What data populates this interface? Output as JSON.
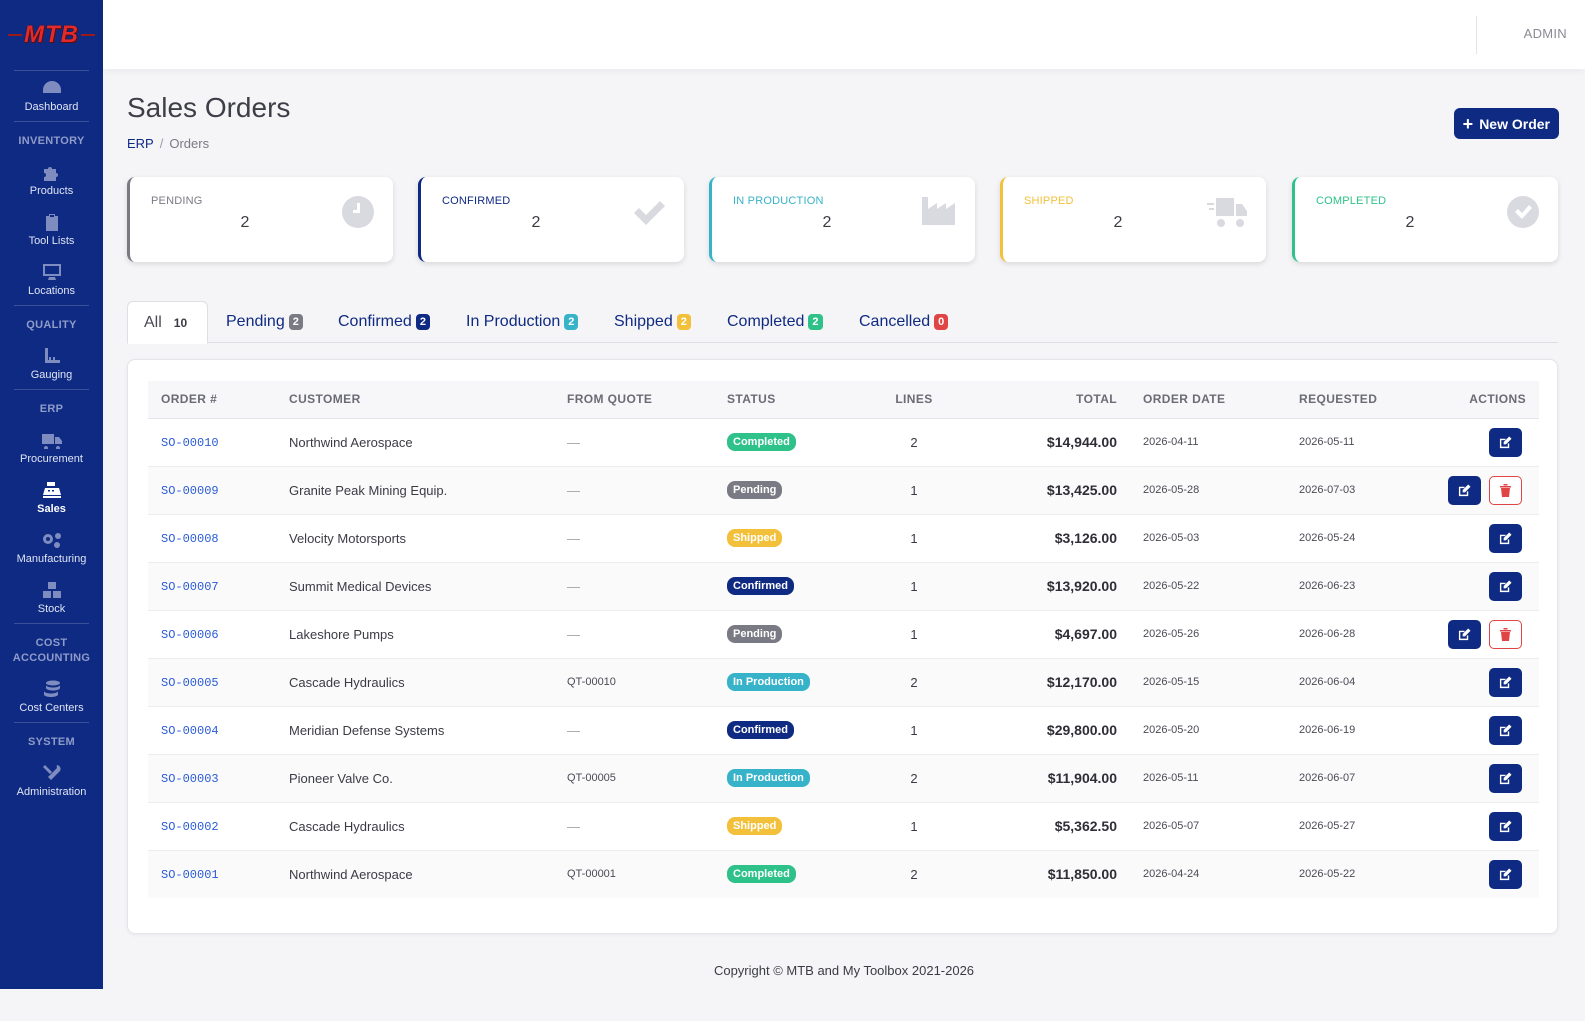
{
  "app": {
    "logo": "MTB",
    "user": "ADMIN"
  },
  "sidebar": {
    "dashboard": "Dashboard",
    "sections": [
      {
        "heading": "INVENTORY",
        "items": [
          {
            "label": "Products",
            "icon": "puzzle-icon"
          },
          {
            "label": "Tool Lists",
            "icon": "clipboard-icon"
          },
          {
            "label": "Locations",
            "icon": "monitor-icon"
          }
        ]
      },
      {
        "heading": "QUALITY",
        "items": [
          {
            "label": "Gauging",
            "icon": "ruler-icon"
          }
        ]
      },
      {
        "heading": "ERP",
        "items": [
          {
            "label": "Procurement",
            "icon": "truck-icon"
          },
          {
            "label": "Sales",
            "icon": "cash-register-icon",
            "active": true
          },
          {
            "label": "Manufacturing",
            "icon": "gears-icon"
          },
          {
            "label": "Stock",
            "icon": "boxes-icon"
          }
        ]
      },
      {
        "heading": "COST ACCOUNTING",
        "items": [
          {
            "label": "Cost Centers",
            "icon": "coins-icon"
          }
        ]
      },
      {
        "heading": "SYSTEM",
        "items": [
          {
            "label": "Administration",
            "icon": "tools-icon"
          }
        ]
      }
    ]
  },
  "header": {
    "title": "Sales Orders",
    "breadcrumb": {
      "root": "ERP",
      "current": "Orders"
    },
    "new_button": "New Order"
  },
  "cards": [
    {
      "title": "PENDING",
      "value": "2",
      "color": "#7a7a84",
      "icon": "clock-icon"
    },
    {
      "title": "CONFIRMED",
      "value": "2",
      "color": "#0f2a82",
      "icon": "check-icon"
    },
    {
      "title": "IN PRODUCTION",
      "value": "2",
      "color": "#36b3c9",
      "icon": "industry-icon"
    },
    {
      "title": "SHIPPED",
      "value": "2",
      "color": "#f2c03a",
      "icon": "truck-fast-icon"
    },
    {
      "title": "COMPLETED",
      "value": "2",
      "color": "#2ec28a",
      "icon": "check-circle-icon"
    }
  ],
  "tabs": [
    {
      "label": "All",
      "count": "10",
      "color": "transparent",
      "active": true
    },
    {
      "label": "Pending",
      "count": "2",
      "color": "#7a7a84"
    },
    {
      "label": "Confirmed",
      "count": "2",
      "color": "#0f2a82"
    },
    {
      "label": "In Production",
      "count": "2",
      "color": "#36b3c9"
    },
    {
      "label": "Shipped",
      "count": "2",
      "color": "#f2c03a"
    },
    {
      "label": "Completed",
      "count": "2",
      "color": "#2ec28a"
    },
    {
      "label": "Cancelled",
      "count": "0",
      "color": "#e04444"
    }
  ],
  "table": {
    "columns": [
      "ORDER #",
      "CUSTOMER",
      "FROM QUOTE",
      "STATUS",
      "LINES",
      "TOTAL",
      "ORDER DATE",
      "REQUESTED",
      "ACTIONS"
    ],
    "status_colors": {
      "Completed": "#2ec28a",
      "Pending": "#7a7a84",
      "Shipped": "#f2c03a",
      "Confirmed": "#0f2a82",
      "In Production": "#36b3c9"
    },
    "rows": [
      {
        "order": "SO-00010",
        "customer": "Northwind Aerospace",
        "quote": "—",
        "status": "Completed",
        "lines": "2",
        "total": "$14,944.00",
        "order_date": "2026-04-11",
        "requested": "2026-05-11",
        "deletable": false
      },
      {
        "order": "SO-00009",
        "customer": "Granite Peak Mining Equip.",
        "quote": "—",
        "status": "Pending",
        "lines": "1",
        "total": "$13,425.00",
        "order_date": "2026-05-28",
        "requested": "2026-07-03",
        "deletable": true
      },
      {
        "order": "SO-00008",
        "customer": "Velocity Motorsports",
        "quote": "—",
        "status": "Shipped",
        "lines": "1",
        "total": "$3,126.00",
        "order_date": "2026-05-03",
        "requested": "2026-05-24",
        "deletable": false
      },
      {
        "order": "SO-00007",
        "customer": "Summit Medical Devices",
        "quote": "—",
        "status": "Confirmed",
        "lines": "1",
        "total": "$13,920.00",
        "order_date": "2026-05-22",
        "requested": "2026-06-23",
        "deletable": false
      },
      {
        "order": "SO-00006",
        "customer": "Lakeshore Pumps",
        "quote": "—",
        "status": "Pending",
        "lines": "1",
        "total": "$4,697.00",
        "order_date": "2026-05-26",
        "requested": "2026-06-28",
        "deletable": true
      },
      {
        "order": "SO-00005",
        "customer": "Cascade Hydraulics",
        "quote": "QT-00010",
        "status": "In Production",
        "lines": "2",
        "total": "$12,170.00",
        "order_date": "2026-05-15",
        "requested": "2026-06-04",
        "deletable": false
      },
      {
        "order": "SO-00004",
        "customer": "Meridian Defense Systems",
        "quote": "—",
        "status": "Confirmed",
        "lines": "1",
        "total": "$29,800.00",
        "order_date": "2026-05-20",
        "requested": "2026-06-19",
        "deletable": false
      },
      {
        "order": "SO-00003",
        "customer": "Pioneer Valve Co.",
        "quote": "QT-00005",
        "status": "In Production",
        "lines": "2",
        "total": "$11,904.00",
        "order_date": "2026-05-11",
        "requested": "2026-06-07",
        "deletable": false
      },
      {
        "order": "SO-00002",
        "customer": "Cascade Hydraulics",
        "quote": "—",
        "status": "Shipped",
        "lines": "1",
        "total": "$5,362.50",
        "order_date": "2026-05-07",
        "requested": "2026-05-27",
        "deletable": false
      },
      {
        "order": "SO-00001",
        "customer": "Northwind Aerospace",
        "quote": "QT-00001",
        "status": "Completed",
        "lines": "2",
        "total": "$11,850.00",
        "order_date": "2026-04-24",
        "requested": "2026-05-22",
        "deletable": false
      }
    ]
  },
  "footer": "Copyright © MTB and My Toolbox 2021-2026"
}
